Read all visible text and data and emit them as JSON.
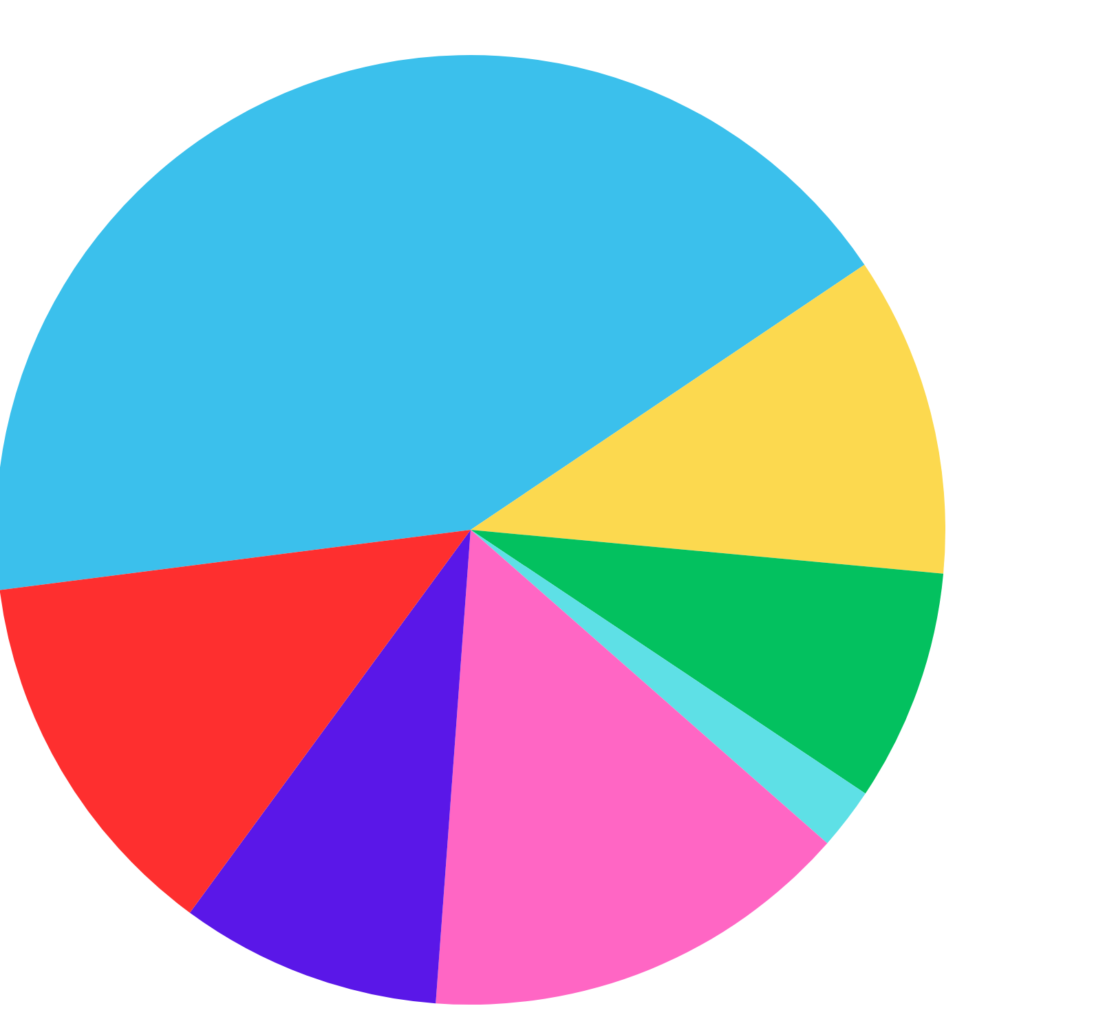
{
  "chart_data": {
    "type": "pie",
    "categories": [
      null,
      null,
      null,
      null,
      null,
      null,
      null
    ],
    "values": [
      42.6,
      10.9,
      7.9,
      2.1,
      14.7,
      8.9,
      12.9
    ],
    "colors": [
      "#3bc0ec",
      "#fcd94f",
      "#03c15f",
      "#5ee0e6",
      "#ff66c4",
      "#5a17e8",
      "#fe2f2f"
    ]
  }
}
